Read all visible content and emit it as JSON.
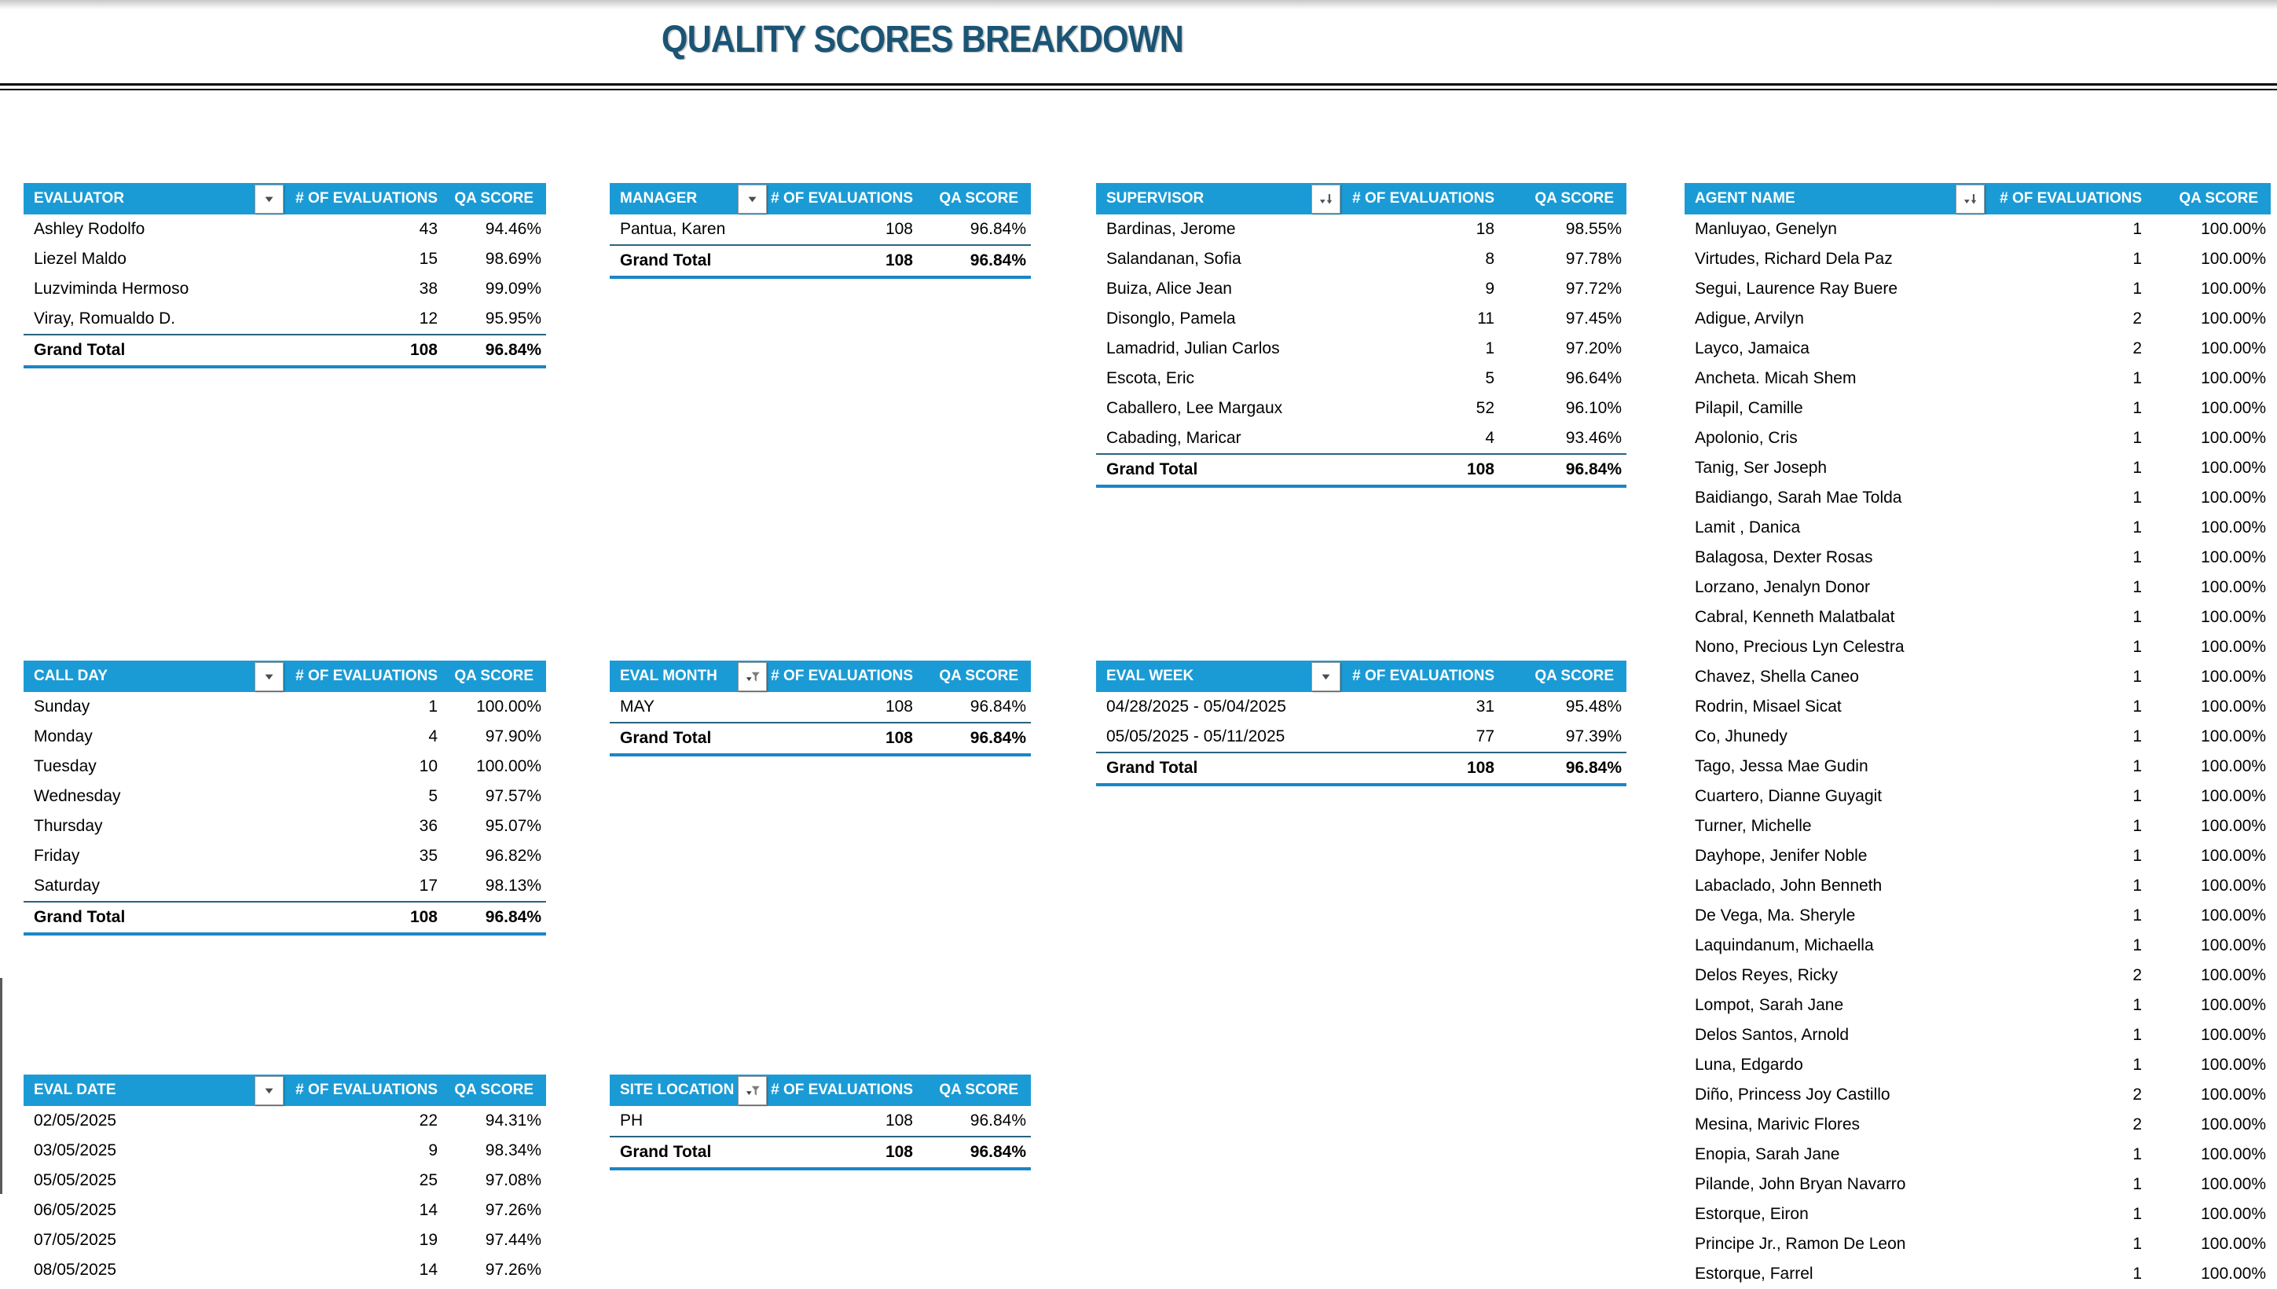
{
  "title": "QUALITY SCORES BREAKDOWN",
  "colors": {
    "header_bg": "#1B9BD5",
    "title_text": "#1B5474",
    "grand_total_top_border": "#2A637F",
    "grand_total_bottom_border": "#1B85C6"
  },
  "tables": {
    "evaluator": {
      "label": "EVALUATOR",
      "icon": "dropdown",
      "col_evals": "# OF EVALUATIONS",
      "col_qa": "QA SCORE",
      "rows": [
        [
          "Ashley Rodolfo",
          "43",
          "94.46%"
        ],
        [
          "Liezel Maldo",
          "15",
          "98.69%"
        ],
        [
          "Luzviminda Hermoso",
          "38",
          "99.09%"
        ],
        [
          "Viray, Romualdo D.",
          "12",
          "95.95%"
        ]
      ],
      "grand_total": [
        "Grand Total",
        "108",
        "96.84%"
      ]
    },
    "manager": {
      "label": "MANAGER",
      "icon": "dropdown",
      "col_evals": "# OF EVALUATIONS",
      "col_qa": "QA SCORE",
      "rows": [
        [
          "Pantua, Karen",
          "108",
          "96.84%"
        ]
      ],
      "grand_total": [
        "Grand Total",
        "108",
        "96.84%"
      ]
    },
    "supervisor": {
      "label": "SUPERVISOR",
      "icon": "sort-desc",
      "col_evals": "# OF EVALUATIONS",
      "col_qa": "QA SCORE",
      "rows": [
        [
          "Bardinas, Jerome",
          "18",
          "98.55%"
        ],
        [
          "Salandanan, Sofia",
          "8",
          "97.78%"
        ],
        [
          "Buiza, Alice Jean",
          "9",
          "97.72%"
        ],
        [
          "Disonglo, Pamela",
          "11",
          "97.45%"
        ],
        [
          "Lamadrid, Julian Carlos",
          "1",
          "97.20%"
        ],
        [
          "Escota, Eric",
          "5",
          "96.64%"
        ],
        [
          "Caballero, Lee Margaux",
          "52",
          "96.10%"
        ],
        [
          "Cabading, Maricar",
          "4",
          "93.46%"
        ]
      ],
      "grand_total": [
        "Grand Total",
        "108",
        "96.84%"
      ]
    },
    "agent": {
      "label": "AGENT NAME",
      "icon": "sort-desc",
      "col_evals": "# OF EVALUATIONS",
      "col_qa": "QA SCORE",
      "rows": [
        [
          "Manluyao, Genelyn",
          "1",
          "100.00%"
        ],
        [
          "Virtudes, Richard Dela Paz",
          "1",
          "100.00%"
        ],
        [
          "Segui, Laurence Ray Buere",
          "1",
          "100.00%"
        ],
        [
          "Adigue, Arvilyn",
          "2",
          "100.00%"
        ],
        [
          "Layco, Jamaica",
          "2",
          "100.00%"
        ],
        [
          "Ancheta. Micah Shem",
          "1",
          "100.00%"
        ],
        [
          "Pilapil, Camille",
          "1",
          "100.00%"
        ],
        [
          "Apolonio, Cris",
          "1",
          "100.00%"
        ],
        [
          "Tanig, Ser Joseph",
          "1",
          "100.00%"
        ],
        [
          "Baidiango, Sarah Mae Tolda",
          "1",
          "100.00%"
        ],
        [
          "Lamit , Danica",
          "1",
          "100.00%"
        ],
        [
          "Balagosa, Dexter Rosas",
          "1",
          "100.00%"
        ],
        [
          "Lorzano, Jenalyn Donor",
          "1",
          "100.00%"
        ],
        [
          "Cabral, Kenneth Malatbalat",
          "1",
          "100.00%"
        ],
        [
          "Nono, Precious Lyn Celestra",
          "1",
          "100.00%"
        ],
        [
          "Chavez, Shella Caneo",
          "1",
          "100.00%"
        ],
        [
          "Rodrin, Misael Sicat",
          "1",
          "100.00%"
        ],
        [
          "Co, Jhunedy",
          "1",
          "100.00%"
        ],
        [
          "Tago, Jessa Mae Gudin",
          "1",
          "100.00%"
        ],
        [
          "Cuartero, Dianne Guyagit",
          "1",
          "100.00%"
        ],
        [
          "Turner, Michelle",
          "1",
          "100.00%"
        ],
        [
          "Dayhope, Jenifer Noble",
          "1",
          "100.00%"
        ],
        [
          "Labaclado, John Benneth",
          "1",
          "100.00%"
        ],
        [
          "De Vega, Ma. Sheryle",
          "1",
          "100.00%"
        ],
        [
          "Laquindanum, Michaella",
          "1",
          "100.00%"
        ],
        [
          "Delos Reyes, Ricky",
          "2",
          "100.00%"
        ],
        [
          "Lompot, Sarah Jane",
          "1",
          "100.00%"
        ],
        [
          "Delos Santos, Arnold",
          "1",
          "100.00%"
        ],
        [
          "Luna, Edgardo",
          "1",
          "100.00%"
        ],
        [
          "Diño, Princess Joy Castillo",
          "2",
          "100.00%"
        ],
        [
          "Mesina, Marivic Flores",
          "2",
          "100.00%"
        ],
        [
          "Enopia, Sarah Jane",
          "1",
          "100.00%"
        ],
        [
          "Pilande, John Bryan Navarro",
          "1",
          "100.00%"
        ],
        [
          "Estorque, Eiron",
          "1",
          "100.00%"
        ],
        [
          "Principe Jr., Ramon De Leon",
          "1",
          "100.00%"
        ],
        [
          "Estorque, Farrel",
          "1",
          "100.00%"
        ]
      ],
      "grand_total": null
    },
    "callday": {
      "label": "CALL DAY",
      "icon": "dropdown",
      "col_evals": "# OF EVALUATIONS",
      "col_qa": "QA SCORE",
      "rows": [
        [
          "Sunday",
          "1",
          "100.00%"
        ],
        [
          "Monday",
          "4",
          "97.90%"
        ],
        [
          "Tuesday",
          "10",
          "100.00%"
        ],
        [
          "Wednesday",
          "5",
          "97.57%"
        ],
        [
          "Thursday",
          "36",
          "95.07%"
        ],
        [
          "Friday",
          "35",
          "96.82%"
        ],
        [
          "Saturday",
          "17",
          "98.13%"
        ]
      ],
      "grand_total": [
        "Grand Total",
        "108",
        "96.84%"
      ]
    },
    "evalmonth": {
      "label": "EVAL MONTH",
      "icon": "funnel",
      "col_evals": "# OF EVALUATIONS",
      "col_qa": "QA SCORE",
      "rows": [
        [
          "MAY",
          "108",
          "96.84%"
        ]
      ],
      "grand_total": [
        "Grand Total",
        "108",
        "96.84%"
      ]
    },
    "evalweek": {
      "label": "EVAL WEEK",
      "icon": "dropdown",
      "col_evals": "# OF EVALUATIONS",
      "col_qa": "QA SCORE",
      "rows": [
        [
          "04/28/2025 - 05/04/2025",
          "31",
          "95.48%"
        ],
        [
          "05/05/2025 - 05/11/2025",
          "77",
          "97.39%"
        ]
      ],
      "grand_total": [
        "Grand Total",
        "108",
        "96.84%"
      ]
    },
    "evaldate": {
      "label": "EVAL DATE",
      "icon": "dropdown",
      "col_evals": "# OF EVALUATIONS",
      "col_qa": "QA SCORE",
      "rows": [
        [
          "02/05/2025",
          "22",
          "94.31%"
        ],
        [
          "03/05/2025",
          "9",
          "98.34%"
        ],
        [
          "05/05/2025",
          "25",
          "97.08%"
        ],
        [
          "06/05/2025",
          "14",
          "97.26%"
        ],
        [
          "07/05/2025",
          "19",
          "97.44%"
        ],
        [
          "08/05/2025",
          "14",
          "97.26%"
        ]
      ],
      "grand_total": null
    },
    "sitelocation": {
      "label": "SITE LOCATION",
      "icon": "funnel",
      "col_evals": "# OF EVALUATIONS",
      "col_qa": "QA SCORE",
      "rows": [
        [
          "PH",
          "108",
          "96.84%"
        ]
      ],
      "grand_total": [
        "Grand Total",
        "108",
        "96.84%"
      ]
    }
  }
}
